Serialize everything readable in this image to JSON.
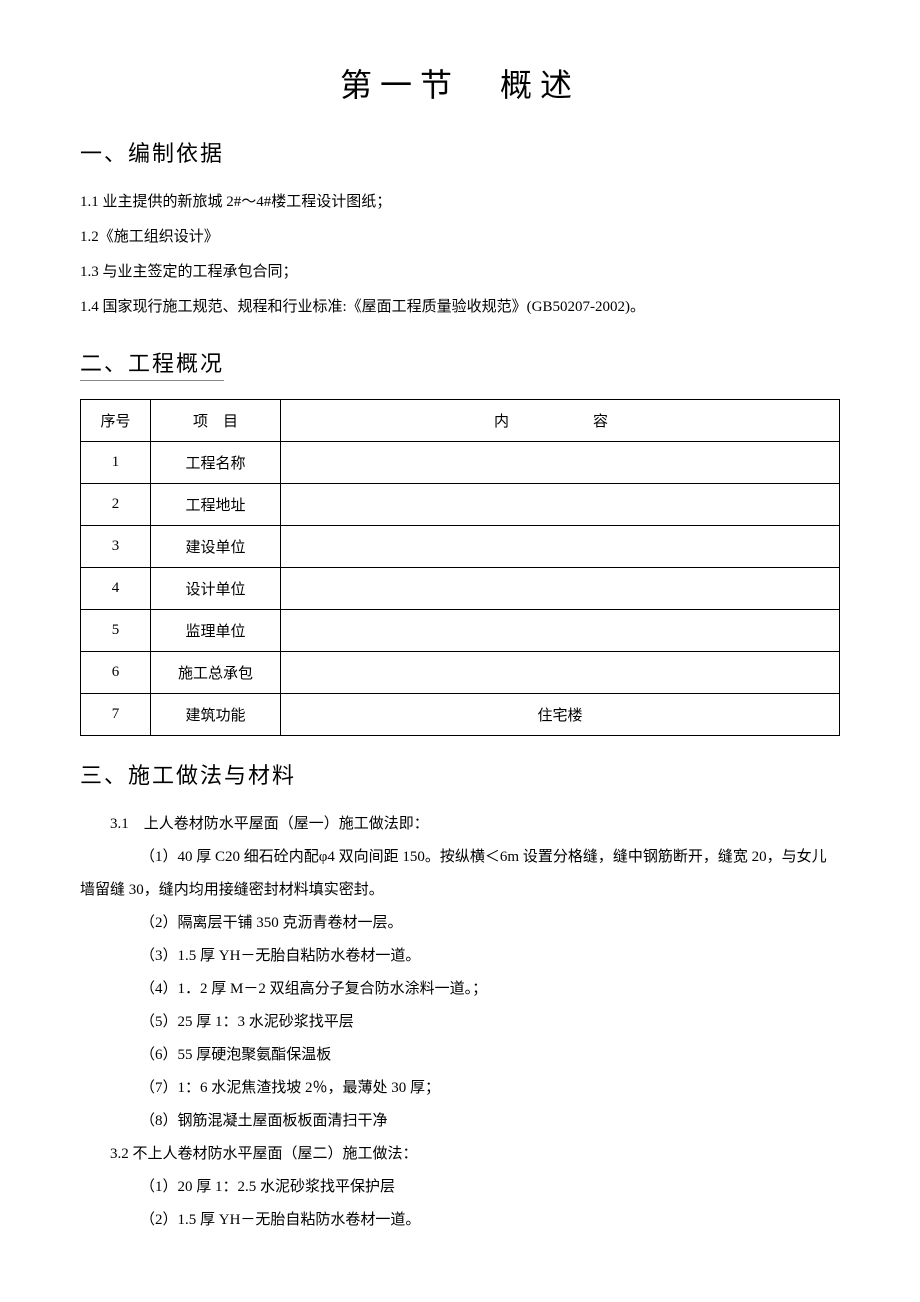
{
  "title": "第一节　概述",
  "section1": {
    "heading": "一、编制依据",
    "items": [
      "1.1 业主提供的新旅城 2#～4#楼工程设计图纸；",
      "1.2《施工组织设计》",
      "1.3 与业主签定的工程承包合同；",
      "1.4 国家现行施工规范、规程和行业标准:《屋面工程质量验收规范》(GB50207-2002)。"
    ]
  },
  "section2": {
    "heading": "二、工程概况",
    "table": {
      "headers": {
        "seq": "序号",
        "item": "项　目",
        "content": "内　　容"
      },
      "rows": [
        {
          "seq": "1",
          "item": "工程名称",
          "content": ""
        },
        {
          "seq": "2",
          "item": "工程地址",
          "content": ""
        },
        {
          "seq": "3",
          "item": "建设单位",
          "content": ""
        },
        {
          "seq": "4",
          "item": "设计单位",
          "content": ""
        },
        {
          "seq": "5",
          "item": "监理单位",
          "content": ""
        },
        {
          "seq": "6",
          "item": "施工总承包",
          "content": ""
        },
        {
          "seq": "7",
          "item": "建筑功能",
          "content": "住宅楼"
        }
      ]
    }
  },
  "section3": {
    "heading": "三、施工做法与材料",
    "sub31_title": "3.1　上人卷材防水平屋面（屋一）施工做法即：",
    "sub31_items": [
      "（1）40 厚 C20 细石砼内配φ4 双向间距 150。按纵横＜6m 设置分格缝，缝中钢筋断开，缝宽 20，与女儿墙留缝 30，缝内均用接缝密封材料填实密封。",
      "（2）隔离层干铺 350 克沥青卷材一层。",
      "（3）1.5 厚 YH－无胎自粘防水卷材一道。",
      "（4）1．2 厚 M－2 双组高分子复合防水涂料一道。；",
      "（5）25 厚 1：3 水泥砂浆找平层",
      "（6）55 厚硬泡聚氨酯保温板",
      "（7）1：6 水泥焦渣找坡 2％，最薄处 30 厚；",
      "（8）钢筋混凝土屋面板板面清扫干净"
    ],
    "sub32_title": "3.2 不上人卷材防水平屋面（屋二）施工做法：",
    "sub32_items": [
      "（1）20 厚 1：2.5 水泥砂浆找平保护层",
      "（2）1.5 厚 YH－无胎自粘防水卷材一道。"
    ]
  }
}
